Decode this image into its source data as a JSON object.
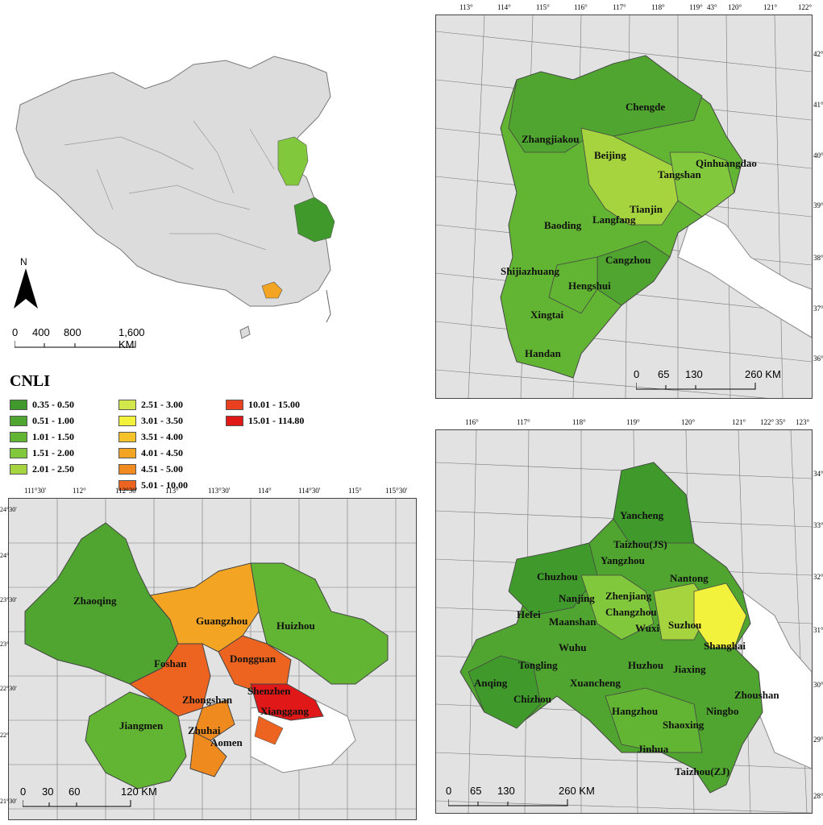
{
  "legend": {
    "title": "CNLI",
    "classes": [
      {
        "label": "0.35 - 0.50",
        "color": "#3f9a2b"
      },
      {
        "label": "0.51 - 1.00",
        "color": "#4fa52f"
      },
      {
        "label": "1.01 - 1.50",
        "color": "#62b533"
      },
      {
        "label": "1.51 - 2.00",
        "color": "#82c83c"
      },
      {
        "label": "2.01 - 2.50",
        "color": "#a6d43e"
      },
      {
        "label": "2.51 - 3.00",
        "color": "#d2e84a"
      },
      {
        "label": "3.01 - 3.50",
        "color": "#f2f23c"
      },
      {
        "label": "3.51 - 4.00",
        "color": "#f6c229"
      },
      {
        "label": "4.01 - 4.50",
        "color": "#f3a423"
      },
      {
        "label": "4.51 - 5.00",
        "color": "#ef8a1f"
      },
      {
        "label": "5.01 - 10.00",
        "color": "#ec6420"
      },
      {
        "label": "10.01 - 15.00",
        "color": "#e94020"
      },
      {
        "label": "15.01 - 114.80",
        "color": "#e01818"
      }
    ]
  },
  "china_map": {
    "north_label": "N",
    "scale": [
      "0",
      "400",
      "800",
      "1,600 KM"
    ]
  },
  "jjj_map": {
    "top_ticks": [
      "113°",
      "114°",
      "115°",
      "116°",
      "117°",
      "118°",
      "119°",
      "120°",
      "121°",
      "122°"
    ],
    "corner_tick": "43°",
    "right_ticks": [
      "42°",
      "41°",
      "40°",
      "39°",
      "38°",
      "37°",
      "36°"
    ],
    "scale": [
      "0",
      "65",
      "130",
      "260 KM"
    ],
    "cities": [
      "Chengde",
      "Zhangjiakou",
      "Beijing",
      "Qinhuangdao",
      "Tangshan",
      "Tianjin",
      "Langfang",
      "Baoding",
      "Cangzhou",
      "Shijiazhuang",
      "Hengshui",
      "Xingtai",
      "Handan"
    ]
  },
  "prd_map": {
    "top_ticks": [
      "111°30'",
      "112°",
      "112°30'",
      "113°",
      "113°30'",
      "114°",
      "114°30'",
      "115°",
      "115°30'"
    ],
    "left_ticks": [
      "24°30'",
      "24°",
      "23°30'",
      "23°",
      "22°30'",
      "22°",
      "21°30'"
    ],
    "scale": [
      "0",
      "30",
      "60",
      "120 KM"
    ],
    "cities": [
      "Zhaoqing",
      "Guangzhou",
      "Huizhou",
      "Foshan",
      "Dongguan",
      "Zhongshan",
      "Shenzhen",
      "Xianggang",
      "Jiangmen",
      "Zhuhai",
      "Aomen"
    ]
  },
  "yrd_map": {
    "top_ticks": [
      "116°",
      "117°",
      "118°",
      "119°",
      "120°",
      "121°",
      "122°",
      "123°"
    ],
    "corner_tick": "35°",
    "right_ticks": [
      "34°",
      "33°",
      "32°",
      "31°",
      "30°",
      "29°",
      "28°"
    ],
    "scale": [
      "0",
      "65",
      "130",
      "260 KM"
    ],
    "cities": [
      "Yancheng",
      "Taizhou(JS)",
      "Yangzhou",
      "Chuzhou",
      "Nantong",
      "Zhenjiang",
      "Nanjing",
      "Hefei",
      "Changzhou",
      "Maanshan",
      "Suzhou",
      "Wuxi",
      "Shanghai",
      "Wuhu",
      "Tongling",
      "Huzhou",
      "Jiaxing",
      "Anqing",
      "Xuancheng",
      "Chizhou",
      "Zhoushan",
      "Hangzhou",
      "Ningbo",
      "Shaoxing",
      "Jinhua",
      "Taizhou(ZJ)"
    ]
  }
}
